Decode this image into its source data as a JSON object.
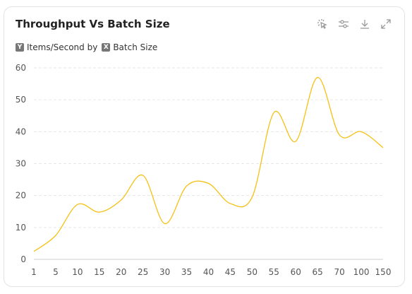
{
  "card": {
    "title": "Throughput Vs Batch Size",
    "legend": {
      "y_badge": "Y",
      "y_label": "Items/Second by",
      "x_badge": "X",
      "x_label": "Batch Size"
    },
    "toolbar": [
      {
        "icon": "select-cursor-icon"
      },
      {
        "icon": "filter-sliders-icon"
      },
      {
        "icon": "download-icon"
      },
      {
        "icon": "expand-icon"
      }
    ]
  },
  "colors": {
    "line": "#F5C116",
    "grid": "#e6e6e6"
  },
  "chart_data": {
    "type": "line",
    "categories": [
      "1",
      "5",
      "10",
      "15",
      "20",
      "25",
      "30",
      "35",
      "40",
      "45",
      "50",
      "55",
      "60",
      "65",
      "70",
      "100",
      "150"
    ],
    "series": [
      {
        "values": [
          2.5,
          7.5,
          17.2,
          14.8,
          18.6,
          26.3,
          11.2,
          23.0,
          23.8,
          17.5,
          19.5,
          46.0,
          37.0,
          57.0,
          39.0,
          40.0,
          35.0
        ]
      }
    ],
    "ylim": [
      0,
      60
    ],
    "yticks": [
      0,
      10,
      20,
      30,
      40,
      50,
      60
    ],
    "grid": true,
    "legend": "top-left",
    "title": "Throughput Vs Batch Size",
    "xlabel": "Batch Size",
    "ylabel": "Items/Second"
  }
}
